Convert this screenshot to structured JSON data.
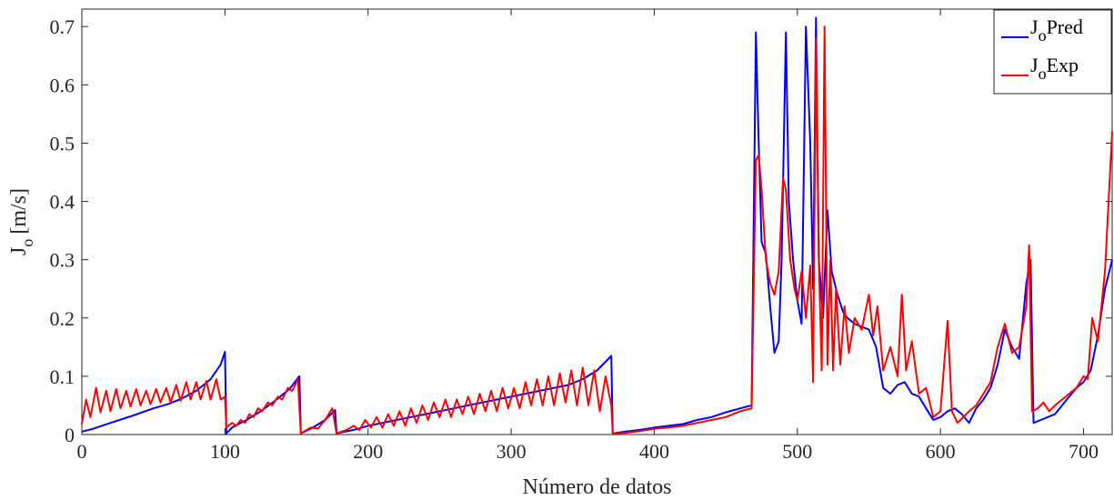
{
  "chart_data": {
    "type": "line",
    "xlabel": "Número de datos",
    "ylabel": {
      "main": "J",
      "sub": "o",
      "rest": "[m/s]"
    },
    "xlim": [
      0,
      720
    ],
    "ylim": [
      0,
      0.73
    ],
    "xticks": [
      0,
      100,
      200,
      300,
      400,
      500,
      600,
      700
    ],
    "xtick_labels": [
      "0",
      "100",
      "200",
      "300",
      "400",
      "500",
      "600",
      "700"
    ],
    "yticks": [
      0,
      0.1,
      0.2,
      0.3,
      0.4,
      0.5,
      0.6,
      0.7
    ],
    "ytick_labels": [
      "0",
      "0.1",
      "0.2",
      "0.3",
      "0.4",
      "0.5",
      "0.6",
      "0.7"
    ],
    "grid": false,
    "legend_position": "top-right",
    "series": [
      {
        "name": {
          "main": "J",
          "sub": "o",
          "rest": "Pred"
        },
        "color": "#0000ff",
        "points": [
          [
            0,
            0.005
          ],
          [
            8,
            0.01
          ],
          [
            20,
            0.02
          ],
          [
            35,
            0.032
          ],
          [
            50,
            0.045
          ],
          [
            60,
            0.052
          ],
          [
            70,
            0.062
          ],
          [
            80,
            0.075
          ],
          [
            90,
            0.095
          ],
          [
            97,
            0.12
          ],
          [
            100,
            0.142
          ],
          [
            101,
            0.002
          ],
          [
            105,
            0.012
          ],
          [
            115,
            0.025
          ],
          [
            125,
            0.04
          ],
          [
            135,
            0.058
          ],
          [
            145,
            0.078
          ],
          [
            152,
            0.1
          ],
          [
            153,
            0.002
          ],
          [
            160,
            0.01
          ],
          [
            170,
            0.025
          ],
          [
            177,
            0.042
          ],
          [
            178,
            0.002
          ],
          [
            190,
            0.008
          ],
          [
            200,
            0.015
          ],
          [
            210,
            0.02
          ],
          [
            220,
            0.025
          ],
          [
            230,
            0.03
          ],
          [
            240,
            0.035
          ],
          [
            250,
            0.04
          ],
          [
            260,
            0.045
          ],
          [
            270,
            0.05
          ],
          [
            280,
            0.055
          ],
          [
            290,
            0.06
          ],
          [
            300,
            0.065
          ],
          [
            310,
            0.07
          ],
          [
            320,
            0.075
          ],
          [
            330,
            0.08
          ],
          [
            340,
            0.085
          ],
          [
            350,
            0.095
          ],
          [
            360,
            0.11
          ],
          [
            370,
            0.135
          ],
          [
            371,
            0.002
          ],
          [
            380,
            0.005
          ],
          [
            390,
            0.008
          ],
          [
            400,
            0.012
          ],
          [
            410,
            0.015
          ],
          [
            420,
            0.018
          ],
          [
            430,
            0.025
          ],
          [
            440,
            0.03
          ],
          [
            450,
            0.038
          ],
          [
            460,
            0.045
          ],
          [
            468,
            0.05
          ],
          [
            471,
            0.69
          ],
          [
            473,
            0.5
          ],
          [
            475,
            0.33
          ],
          [
            478,
            0.31
          ],
          [
            481,
            0.22
          ],
          [
            484,
            0.14
          ],
          [
            487,
            0.16
          ],
          [
            489,
            0.3
          ],
          [
            492,
            0.69
          ],
          [
            494,
            0.4
          ],
          [
            497,
            0.3
          ],
          [
            500,
            0.23
          ],
          [
            503,
            0.19
          ],
          [
            506,
            0.7
          ],
          [
            509,
            0.5
          ],
          [
            511,
            0.25
          ],
          [
            513,
            0.715
          ],
          [
            515,
            0.3
          ],
          [
            518,
            0.2
          ],
          [
            521,
            0.385
          ],
          [
            524,
            0.28
          ],
          [
            528,
            0.24
          ],
          [
            532,
            0.21
          ],
          [
            535,
            0.2
          ],
          [
            540,
            0.19
          ],
          [
            545,
            0.185
          ],
          [
            550,
            0.18
          ],
          [
            555,
            0.15
          ],
          [
            560,
            0.08
          ],
          [
            565,
            0.07
          ],
          [
            570,
            0.085
          ],
          [
            575,
            0.09
          ],
          [
            580,
            0.07
          ],
          [
            585,
            0.065
          ],
          [
            590,
            0.045
          ],
          [
            595,
            0.025
          ],
          [
            600,
            0.03
          ],
          [
            605,
            0.04
          ],
          [
            610,
            0.045
          ],
          [
            615,
            0.035
          ],
          [
            620,
            0.02
          ],
          [
            625,
            0.045
          ],
          [
            630,
            0.06
          ],
          [
            635,
            0.08
          ],
          [
            640,
            0.12
          ],
          [
            645,
            0.18
          ],
          [
            650,
            0.15
          ],
          [
            655,
            0.13
          ],
          [
            660,
            0.26
          ],
          [
            663,
            0.3
          ],
          [
            665,
            0.02
          ],
          [
            670,
            0.025
          ],
          [
            675,
            0.03
          ],
          [
            680,
            0.035
          ],
          [
            685,
            0.05
          ],
          [
            690,
            0.065
          ],
          [
            695,
            0.08
          ],
          [
            700,
            0.09
          ],
          [
            705,
            0.11
          ],
          [
            710,
            0.17
          ],
          [
            715,
            0.25
          ],
          [
            720,
            0.3
          ]
        ]
      },
      {
        "name": {
          "main": "J",
          "sub": "o",
          "rest": "Exp"
        },
        "color": "#ff0000",
        "points": [
          [
            0,
            0.018
          ],
          [
            3,
            0.06
          ],
          [
            6,
            0.03
          ],
          [
            10,
            0.08
          ],
          [
            13,
            0.038
          ],
          [
            17,
            0.075
          ],
          [
            20,
            0.04
          ],
          [
            24,
            0.078
          ],
          [
            27,
            0.045
          ],
          [
            31,
            0.075
          ],
          [
            34,
            0.048
          ],
          [
            38,
            0.078
          ],
          [
            41,
            0.05
          ],
          [
            45,
            0.075
          ],
          [
            48,
            0.052
          ],
          [
            52,
            0.078
          ],
          [
            55,
            0.055
          ],
          [
            59,
            0.08
          ],
          [
            62,
            0.055
          ],
          [
            66,
            0.085
          ],
          [
            69,
            0.058
          ],
          [
            73,
            0.09
          ],
          [
            76,
            0.06
          ],
          [
            80,
            0.09
          ],
          [
            83,
            0.06
          ],
          [
            87,
            0.092
          ],
          [
            90,
            0.06
          ],
          [
            94,
            0.095
          ],
          [
            97,
            0.06
          ],
          [
            100,
            0.065
          ],
          [
            101,
            0.012
          ],
          [
            105,
            0.02
          ],
          [
            108,
            0.015
          ],
          [
            111,
            0.025
          ],
          [
            114,
            0.02
          ],
          [
            117,
            0.035
          ],
          [
            120,
            0.03
          ],
          [
            123,
            0.045
          ],
          [
            126,
            0.04
          ],
          [
            130,
            0.055
          ],
          [
            133,
            0.05
          ],
          [
            137,
            0.065
          ],
          [
            140,
            0.06
          ],
          [
            144,
            0.08
          ],
          [
            147,
            0.075
          ],
          [
            151,
            0.095
          ],
          [
            153,
            0.002
          ],
          [
            160,
            0.012
          ],
          [
            165,
            0.01
          ],
          [
            170,
            0.025
          ],
          [
            175,
            0.045
          ],
          [
            178,
            0.002
          ],
          [
            185,
            0.008
          ],
          [
            190,
            0.015
          ],
          [
            194,
            0.008
          ],
          [
            198,
            0.025
          ],
          [
            202,
            0.012
          ],
          [
            206,
            0.03
          ],
          [
            210,
            0.012
          ],
          [
            214,
            0.035
          ],
          [
            218,
            0.015
          ],
          [
            222,
            0.04
          ],
          [
            226,
            0.015
          ],
          [
            230,
            0.045
          ],
          [
            234,
            0.02
          ],
          [
            238,
            0.05
          ],
          [
            242,
            0.025
          ],
          [
            246,
            0.055
          ],
          [
            250,
            0.03
          ],
          [
            254,
            0.06
          ],
          [
            258,
            0.03
          ],
          [
            262,
            0.06
          ],
          [
            266,
            0.035
          ],
          [
            270,
            0.065
          ],
          [
            274,
            0.035
          ],
          [
            278,
            0.07
          ],
          [
            282,
            0.04
          ],
          [
            286,
            0.075
          ],
          [
            290,
            0.04
          ],
          [
            294,
            0.08
          ],
          [
            298,
            0.045
          ],
          [
            302,
            0.08
          ],
          [
            306,
            0.045
          ],
          [
            310,
            0.09
          ],
          [
            314,
            0.05
          ],
          [
            318,
            0.095
          ],
          [
            322,
            0.05
          ],
          [
            326,
            0.1
          ],
          [
            330,
            0.05
          ],
          [
            334,
            0.105
          ],
          [
            338,
            0.055
          ],
          [
            342,
            0.11
          ],
          [
            346,
            0.05
          ],
          [
            350,
            0.115
          ],
          [
            354,
            0.05
          ],
          [
            358,
            0.11
          ],
          [
            362,
            0.04
          ],
          [
            366,
            0.1
          ],
          [
            370,
            0.05
          ],
          [
            371,
            0.002
          ],
          [
            380,
            0.003
          ],
          [
            390,
            0.006
          ],
          [
            400,
            0.01
          ],
          [
            410,
            0.012
          ],
          [
            420,
            0.015
          ],
          [
            430,
            0.02
          ],
          [
            440,
            0.025
          ],
          [
            450,
            0.03
          ],
          [
            460,
            0.04
          ],
          [
            468,
            0.045
          ],
          [
            471,
            0.47
          ],
          [
            473,
            0.48
          ],
          [
            475,
            0.42
          ],
          [
            478,
            0.3
          ],
          [
            481,
            0.26
          ],
          [
            484,
            0.24
          ],
          [
            487,
            0.28
          ],
          [
            490,
            0.44
          ],
          [
            492,
            0.42
          ],
          [
            495,
            0.3
          ],
          [
            498,
            0.25
          ],
          [
            500,
            0.23
          ],
          [
            503,
            0.28
          ],
          [
            506,
            0.2
          ],
          [
            509,
            0.29
          ],
          [
            511,
            0.09
          ],
          [
            513,
            0.68
          ],
          [
            515,
            0.3
          ],
          [
            517,
            0.11
          ],
          [
            519,
            0.7
          ],
          [
            521,
            0.12
          ],
          [
            523,
            0.3
          ],
          [
            525,
            0.11
          ],
          [
            527,
            0.25
          ],
          [
            530,
            0.12
          ],
          [
            533,
            0.22
          ],
          [
            536,
            0.14
          ],
          [
            540,
            0.2
          ],
          [
            545,
            0.18
          ],
          [
            550,
            0.24
          ],
          [
            553,
            0.17
          ],
          [
            556,
            0.22
          ],
          [
            560,
            0.11
          ],
          [
            565,
            0.15
          ],
          [
            570,
            0.1
          ],
          [
            573,
            0.24
          ],
          [
            576,
            0.11
          ],
          [
            580,
            0.16
          ],
          [
            585,
            0.07
          ],
          [
            590,
            0.08
          ],
          [
            595,
            0.03
          ],
          [
            600,
            0.04
          ],
          [
            605,
            0.195
          ],
          [
            608,
            0.04
          ],
          [
            612,
            0.02
          ],
          [
            616,
            0.03
          ],
          [
            620,
            0.04
          ],
          [
            625,
            0.05
          ],
          [
            630,
            0.07
          ],
          [
            635,
            0.09
          ],
          [
            640,
            0.15
          ],
          [
            645,
            0.19
          ],
          [
            650,
            0.14
          ],
          [
            655,
            0.15
          ],
          [
            660,
            0.22
          ],
          [
            662,
            0.325
          ],
          [
            664,
            0.04
          ],
          [
            668,
            0.045
          ],
          [
            672,
            0.055
          ],
          [
            676,
            0.04
          ],
          [
            680,
            0.05
          ],
          [
            685,
            0.06
          ],
          [
            690,
            0.07
          ],
          [
            695,
            0.08
          ],
          [
            700,
            0.1
          ],
          [
            703,
            0.095
          ],
          [
            706,
            0.2
          ],
          [
            710,
            0.16
          ],
          [
            715,
            0.28
          ],
          [
            720,
            0.52
          ]
        ]
      }
    ]
  }
}
